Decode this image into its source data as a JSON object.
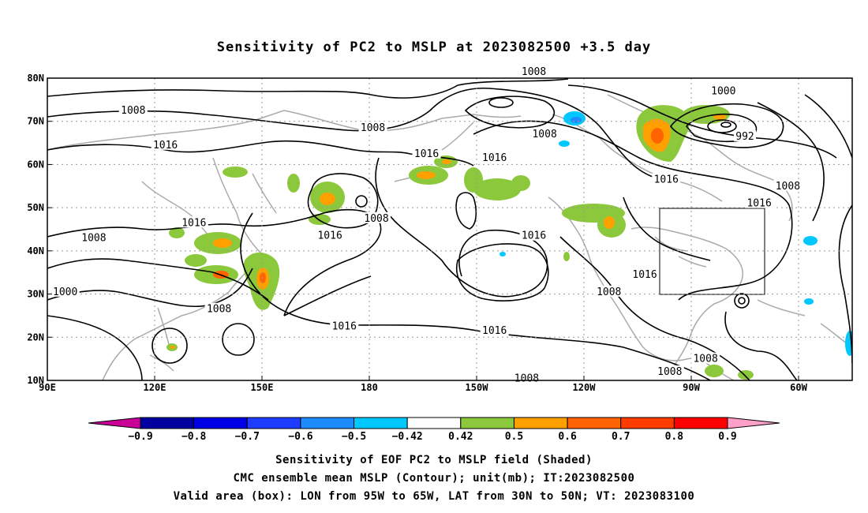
{
  "map": {
    "title": "Sensitivity of PC2 to MSLP at 2023082500 +3.5 day",
    "x_ticks": [
      {
        "lon": 90,
        "label": "90E"
      },
      {
        "lon": 120,
        "label": "120E"
      },
      {
        "lon": 150,
        "label": "150E"
      },
      {
        "lon": 180,
        "label": "180"
      },
      {
        "lon": 210,
        "label": "150W"
      },
      {
        "lon": 240,
        "label": "120W"
      },
      {
        "lon": 270,
        "label": "90W"
      },
      {
        "lon": 300,
        "label": "60W"
      }
    ],
    "y_ticks": [
      {
        "lat": 80,
        "label": "80N"
      },
      {
        "lat": 70,
        "label": "70N"
      },
      {
        "lat": 60,
        "label": "60N"
      },
      {
        "lat": 50,
        "label": "50N"
      },
      {
        "lat": 40,
        "label": "40N"
      },
      {
        "lat": 30,
        "label": "30N"
      },
      {
        "lat": 20,
        "label": "20N"
      },
      {
        "lat": 10,
        "label": "10N"
      }
    ],
    "lon_range": [
      90,
      315
    ],
    "lat_range": [
      10,
      80
    ],
    "grid": true,
    "valid_box": {
      "lon_min": 265,
      "lon_max": 295,
      "lat_min": 30,
      "lat_max": 50
    },
    "contour_labels": [
      {
        "text": "1008",
        "lon": 114,
        "lat": 72.5
      },
      {
        "text": "1008",
        "lon": 181,
        "lat": 68.5
      },
      {
        "text": "1008",
        "lon": 226,
        "lat": 81.5
      },
      {
        "text": "1008",
        "lon": 229,
        "lat": 67
      },
      {
        "text": "1016",
        "lon": 123,
        "lat": 64.5
      },
      {
        "text": "1016",
        "lon": 196,
        "lat": 62.5
      },
      {
        "text": "1016",
        "lon": 215,
        "lat": 61.5
      },
      {
        "text": "1000",
        "lon": 279,
        "lat": 77
      },
      {
        "text": "992",
        "lon": 285,
        "lat": 66.5
      },
      {
        "text": "1016",
        "lon": 263,
        "lat": 56.5
      },
      {
        "text": "1008",
        "lon": 297,
        "lat": 55
      },
      {
        "text": "1016",
        "lon": 289,
        "lat": 51
      },
      {
        "text": "1008",
        "lon": 182,
        "lat": 47.5
      },
      {
        "text": "1016",
        "lon": 131,
        "lat": 46.5
      },
      {
        "text": "1008",
        "lon": 103,
        "lat": 43
      },
      {
        "text": "1016",
        "lon": 169,
        "lat": 43.5
      },
      {
        "text": "1016",
        "lon": 226,
        "lat": 43.5
      },
      {
        "text": "1016",
        "lon": 257,
        "lat": 34.5
      },
      {
        "text": "1008",
        "lon": 247,
        "lat": 30.5
      },
      {
        "text": "1000",
        "lon": 95,
        "lat": 30.5
      },
      {
        "text": "1008",
        "lon": 138,
        "lat": 26.5
      },
      {
        "text": "1016",
        "lon": 173,
        "lat": 22.5
      },
      {
        "text": "1016",
        "lon": 215,
        "lat": 21.5
      },
      {
        "text": "1008",
        "lon": 274,
        "lat": 15
      },
      {
        "text": "1008",
        "lon": 264,
        "lat": 12
      },
      {
        "text": "1008",
        "lon": 224,
        "lat": 10.5
      }
    ]
  },
  "colorbar": {
    "labels": [
      "-0.9",
      "-0.8",
      "-0.7",
      "-0.6",
      "-0.5",
      "-0.42",
      "0.42",
      "0.5",
      "0.6",
      "0.7",
      "0.8",
      "0.9"
    ],
    "colors": [
      "#0000a0",
      "#0000e6",
      "#1e3cff",
      "#1e8cff",
      "#00c8ff",
      "#ffffff",
      "#8cc83c",
      "#ffa000",
      "#ff6400",
      "#ff3c00",
      "#ff0000"
    ],
    "low_extend_color": "#c80096",
    "high_extend_color": "#ffa0c8"
  },
  "captions": {
    "line1": "Sensitivity of EOF PC2 to MSLP field (Shaded)",
    "line2": "CMC ensemble mean MSLP (Contour); unit(mb); IT:2023082500",
    "line3": "Valid area (box): LON from 95W to 65W, LAT from 30N to 50N; VT: 2023083100"
  }
}
